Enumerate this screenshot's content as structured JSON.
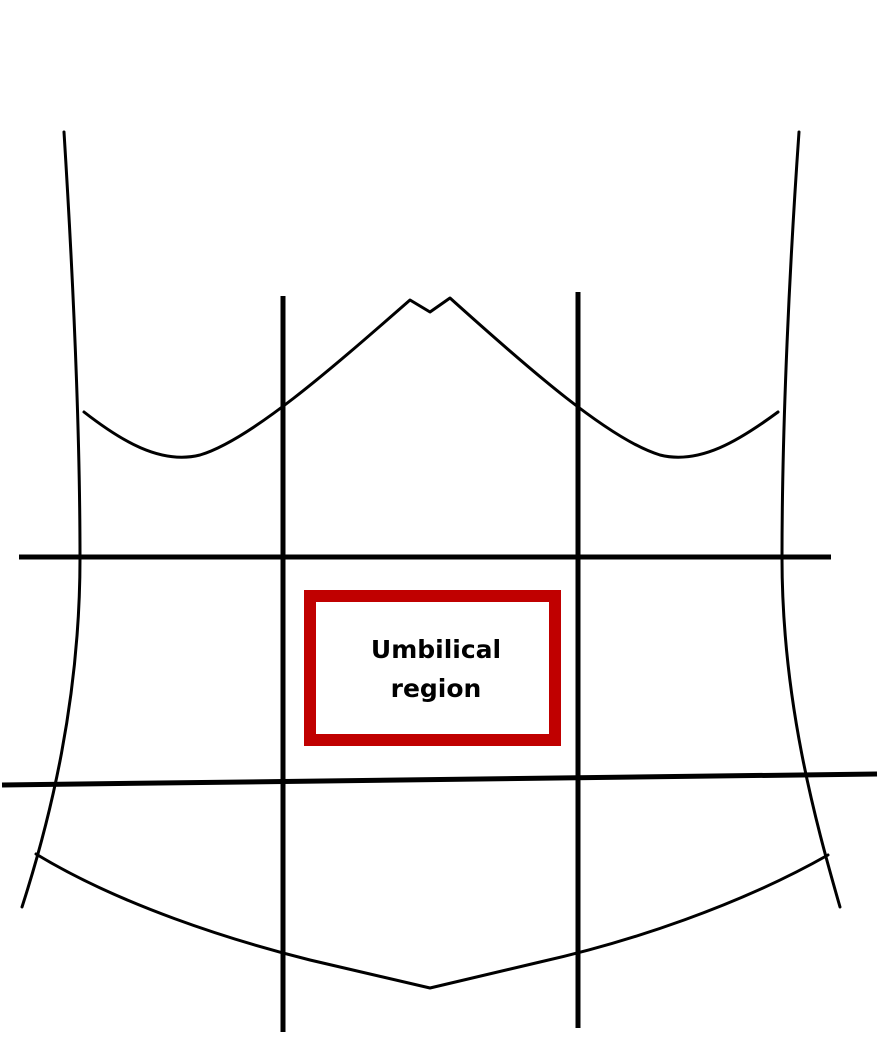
{
  "highlight": {
    "label_lines": [
      "Umbilical",
      "region"
    ],
    "color": "#c00000"
  },
  "line_color": "#000000",
  "background": "#ffffff"
}
